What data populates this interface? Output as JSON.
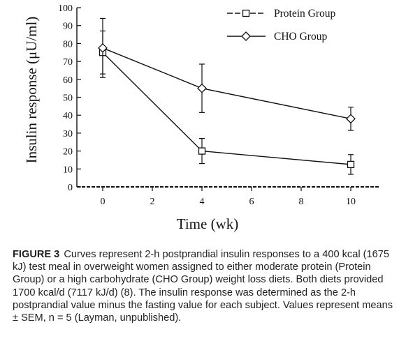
{
  "chart_data": {
    "type": "line",
    "ylabel": "Insulin response (μU/ml)",
    "xlabel": "Time (wk)",
    "x_ticks": [
      0,
      2,
      4,
      6,
      8,
      10
    ],
    "y_ticks": [
      0,
      10,
      20,
      30,
      40,
      50,
      60,
      70,
      80,
      90,
      100
    ],
    "xlim": [
      -1,
      11.5
    ],
    "ylim": [
      0,
      100
    ],
    "grid": false,
    "legend_position": "top-right",
    "series": [
      {
        "name": "Protein Group",
        "marker": "square",
        "x": [
          0,
          4,
          10
        ],
        "y": [
          75,
          20,
          12.5
        ],
        "error": [
          12,
          7,
          5.5
        ]
      },
      {
        "name": "CHO Group",
        "marker": "diamond",
        "x": [
          0,
          4,
          10
        ],
        "y": [
          77.5,
          55,
          38
        ],
        "error": [
          16.5,
          13.5,
          6.5
        ]
      }
    ]
  },
  "caption": {
    "label": "FIGURE 3",
    "text": "Curves represent 2-h postprandial insulin responses to a 400 kcal (1675 kJ) test meal in overweight women assigned to either moderate protein (Protein Group) or a high carbohydrate (CHO Group) weight loss diets. Both diets provided 1700 kcal/d (7117 kJ/d) (8). The insulin response was determined as the 2-h postprandial value minus the fasting value for each subject. Values represent means ± SEM, n = 5 (Layman, unpublished)."
  }
}
